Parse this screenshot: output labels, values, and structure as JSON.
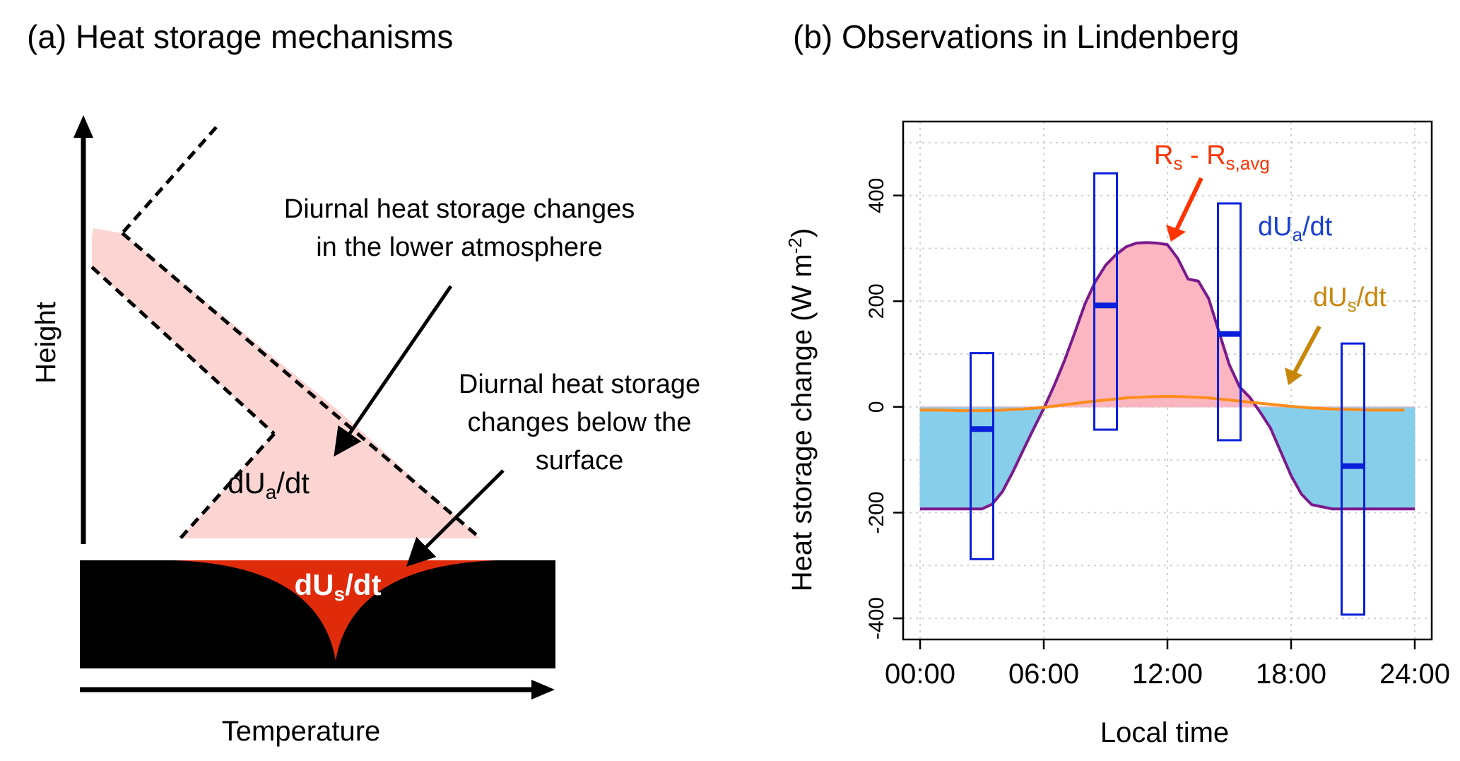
{
  "left_panel": {
    "title": "(a) Heat storage mechanisms",
    "y_axis_label": "Height",
    "x_axis_label": "Temperature",
    "annotation_atmosphere_line1": "Diurnal heat storage changes",
    "annotation_atmosphere_line2": "in the lower atmosphere",
    "annotation_surface_line1": "Diurnal heat storage",
    "annotation_surface_line2": "changes below the",
    "annotation_surface_line3": "surface",
    "label_dUa_main": "dU",
    "label_dUa_sub": "a",
    "label_dUa_tail": "/dt",
    "label_dUs_main": "dU",
    "label_dUs_sub": "s",
    "label_dUs_tail": "/dt",
    "colors": {
      "atmosphere_fill": "#fcd5d3",
      "surface_fill": "#e02b0b",
      "ground": "#000000"
    }
  },
  "right_panel": {
    "title": "(b) Observations in Lindenberg",
    "ylabel_main": "Heat storage change (W m",
    "ylabel_sup": "-2",
    "ylabel_end": ")",
    "xlabel": "Local time",
    "label_rs_a": "R",
    "label_rs_a_sub": "s",
    "label_rs_mid": " - R",
    "label_rs_b_sub": "s,avg",
    "label_dua_main": "dU",
    "label_dua_sub": "a",
    "label_dua_tail": "/dt",
    "label_dus_main": "dU",
    "label_dus_sub": "s",
    "label_dus_tail": "/dt",
    "colors": {
      "rs_curve": "#7a1a8c",
      "positive_fill": "#fbb6c1",
      "negative_fill": "#87ceeb",
      "dus_curve": "#ff8c1a",
      "box": "#0a1fd9",
      "rs_label": "#ff3300",
      "dua_label": "#1a3fd0",
      "dus_label": "#c8860a",
      "grid": "#d0d0d0"
    }
  },
  "chart_data": {
    "type": "line",
    "xlabel": "Local time",
    "ylabel": "Heat storage change (W m-2)",
    "xlim": [
      0,
      24
    ],
    "ylim": [
      -440,
      540
    ],
    "x_ticks": [
      0,
      6,
      12,
      18,
      24
    ],
    "x_tick_labels": [
      "00:00",
      "06:00",
      "12:00",
      "18:00",
      "24:00"
    ],
    "y_ticks": [
      -400,
      -200,
      0,
      200,
      400
    ],
    "y_tick_labels": [
      "-400",
      "-200",
      "0",
      "200",
      "400"
    ],
    "grid": true,
    "series": [
      {
        "name": "Rs - Rs,avg",
        "x": [
          0,
          1,
          2,
          3,
          3.5,
          4,
          4.5,
          5,
          5.5,
          6,
          6.5,
          7,
          7.5,
          8,
          8.5,
          9,
          9.5,
          10,
          10.5,
          11,
          11.5,
          12,
          12.5,
          13,
          13.5,
          14,
          14.5,
          15,
          15.5,
          16,
          16.5,
          17,
          17.5,
          18,
          18.5,
          19,
          20,
          21,
          22,
          24
        ],
        "y": [
          -193,
          -193,
          -193,
          -193,
          -184,
          -160,
          -123,
          -82,
          -42,
          -3,
          40,
          87,
          140,
          195,
          237,
          268,
          288,
          303,
          310,
          311,
          310,
          307,
          281,
          242,
          238,
          205,
          142,
          80,
          38,
          18,
          -10,
          -40,
          -85,
          -130,
          -165,
          -185,
          -193,
          -193,
          -193,
          -193
        ]
      },
      {
        "name": "dUs/dt",
        "x": [
          0,
          1,
          2,
          3,
          4,
          5,
          6,
          7,
          8,
          9,
          10,
          11,
          12,
          13,
          14,
          15,
          16,
          17,
          18,
          19,
          20,
          21,
          22,
          23,
          23.5
        ],
        "y": [
          -6,
          -6,
          -7,
          -7,
          -6,
          -4,
          -1,
          4,
          9,
          13,
          17,
          19,
          20,
          19,
          17,
          13,
          9,
          5,
          1,
          -2,
          -4,
          -5,
          -6,
          -6,
          -6
        ]
      }
    ],
    "boxes": [
      {
        "name": "dUa/dt",
        "x": 3,
        "low": -288,
        "high": 102,
        "median": -42
      },
      {
        "name": "dUa/dt",
        "x": 9,
        "low": -43,
        "high": 442,
        "median": 192
      },
      {
        "name": "dUa/dt",
        "x": 15,
        "low": -63,
        "high": 385,
        "median": 138
      },
      {
        "name": "dUa/dt",
        "x": 21,
        "low": -393,
        "high": 120,
        "median": -112
      }
    ]
  }
}
